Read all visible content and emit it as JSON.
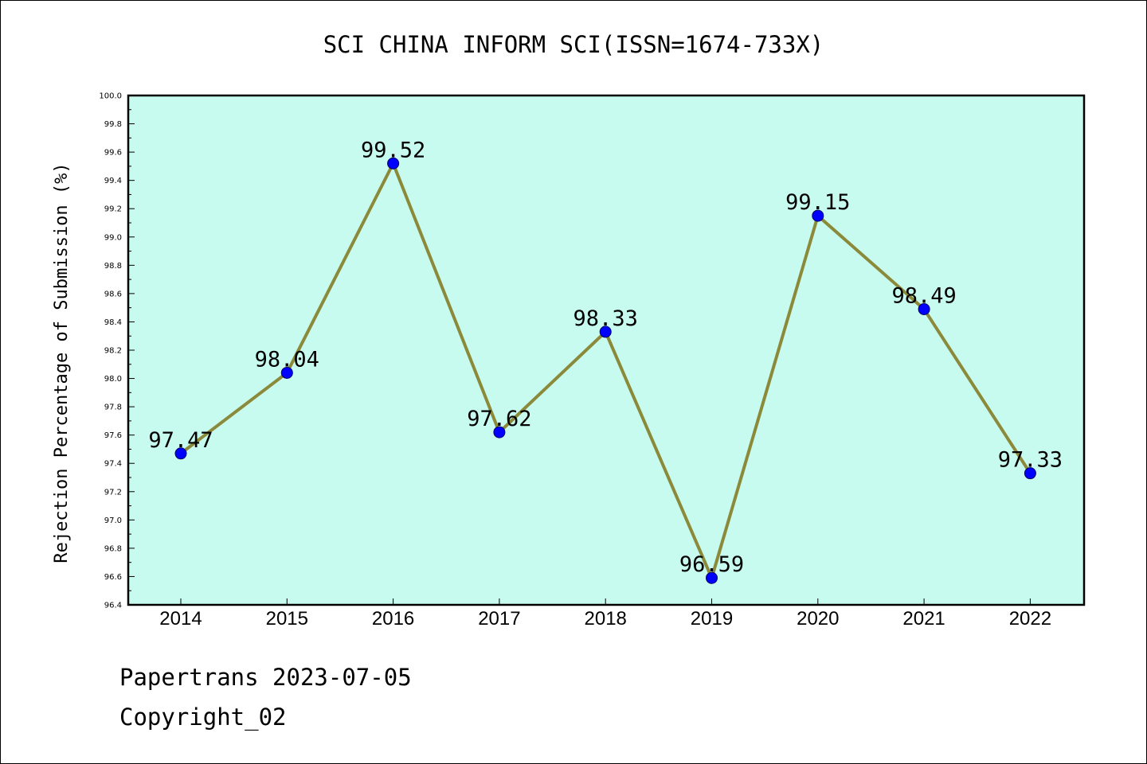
{
  "chart_data": {
    "type": "line",
    "title": "SCI CHINA INFORM SCI(ISSN=1674-733X)",
    "xlabel": "",
    "ylabel": "Rejection Percentage of Submission (%)",
    "categories": [
      "2014",
      "2015",
      "2016",
      "2017",
      "2018",
      "2019",
      "2020",
      "2021",
      "2022"
    ],
    "series": [
      {
        "values": [
          97.47,
          98.04,
          99.52,
          97.62,
          98.33,
          96.59,
          99.15,
          98.49,
          97.33
        ],
        "data_labels": [
          "97.47",
          "98.04",
          "99.52",
          "97.62",
          "98.33",
          "96.59",
          "99.15",
          "98.49",
          "97.33"
        ]
      }
    ],
    "ylim": [
      96.4,
      100.0
    ],
    "y_ticks": [
      "96.4",
      "96.6",
      "96.8",
      "97.0",
      "97.2",
      "97.4",
      "97.6",
      "97.8",
      "98.0",
      "98.2",
      "98.4",
      "98.6",
      "98.8",
      "99.0",
      "99.2",
      "99.4",
      "99.6",
      "99.8",
      "100.0"
    ],
    "grid": false,
    "colors": {
      "plot_background": "#c8fbef",
      "line": "#8b8a3a",
      "marker": "#0000ff",
      "axis": "#000000"
    }
  },
  "footer": {
    "date_line": "Papertrans 2023-07-05",
    "copyright_line": "Copyright_02"
  }
}
